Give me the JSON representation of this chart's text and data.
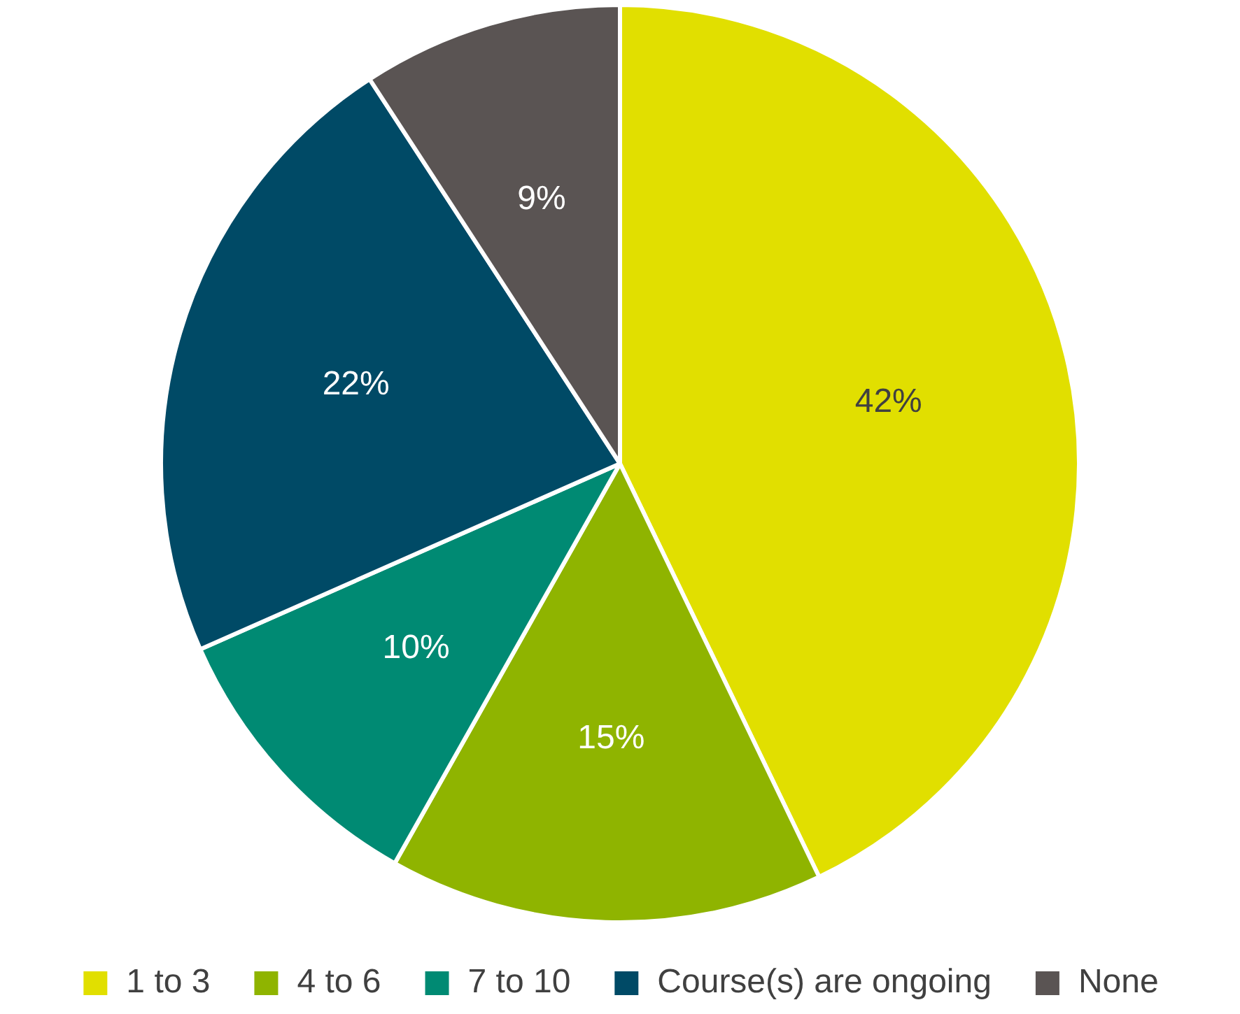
{
  "chart_data": {
    "type": "pie",
    "categories": [
      "1 to 3",
      "4 to 6",
      "7 to 10",
      "Course(s) are ongoing",
      "None"
    ],
    "values": [
      42,
      15,
      10,
      22,
      9
    ],
    "colors": [
      "#e1df00",
      "#8fb400",
      "#008a73",
      "#004a66",
      "#5a5453"
    ],
    "value_labels": [
      "42%",
      "15%",
      "10%",
      "22%",
      "9%"
    ],
    "legend": "bottom"
  }
}
